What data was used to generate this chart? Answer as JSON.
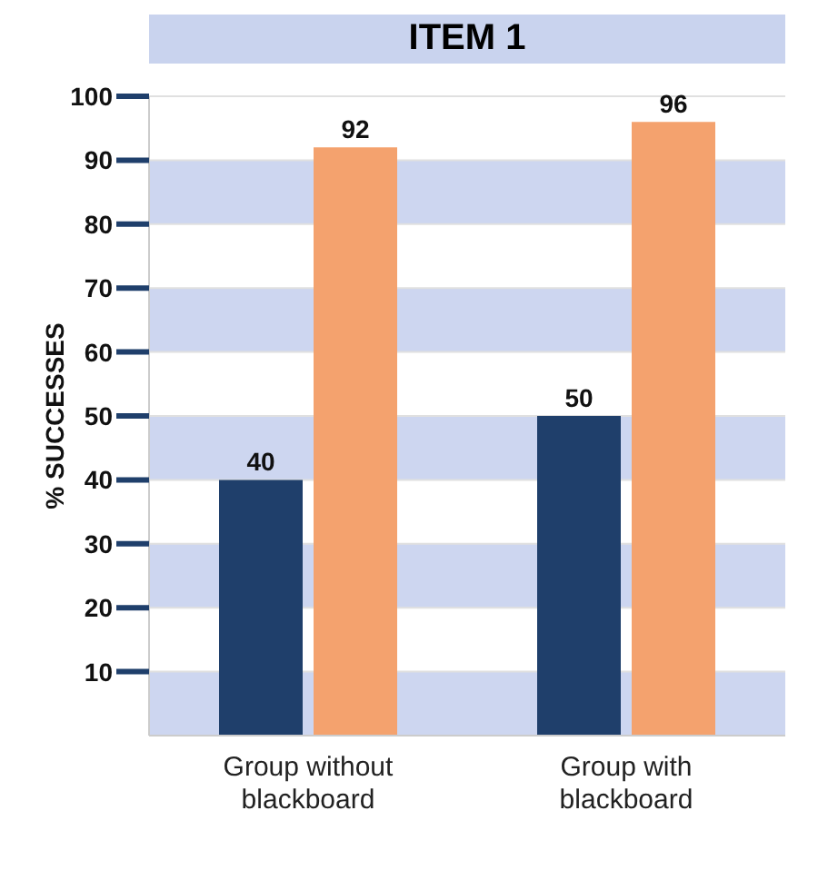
{
  "chart_data": {
    "type": "bar",
    "title": "ITEM 1",
    "ylabel": "% SUCCESSES",
    "categories": [
      "Group without blackboard",
      "Group with blackboard"
    ],
    "series": [
      {
        "color": "#1f3f6b",
        "values": [
          40,
          50
        ]
      },
      {
        "color": "#f4a26e",
        "values": [
          92,
          96
        ]
      }
    ],
    "ylim": [
      0,
      100
    ],
    "yticks": [
      10,
      20,
      30,
      40,
      50,
      60,
      70,
      80,
      90,
      100
    ],
    "grid": "y",
    "data_labels": true
  }
}
